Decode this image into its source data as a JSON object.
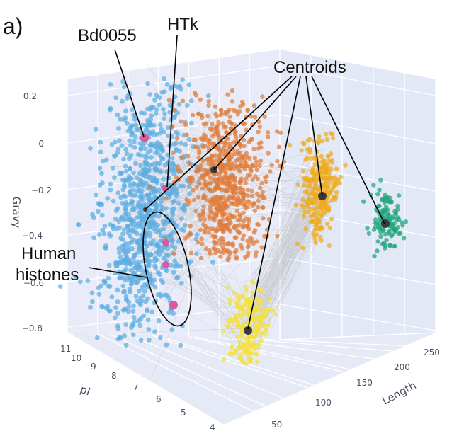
{
  "panel_label": "a)",
  "chart_data": {
    "type": "scatter",
    "projection": "3d",
    "title": "",
    "axes": {
      "x": {
        "label": "Length",
        "ticks": [
          50,
          100,
          150,
          200,
          250
        ],
        "range": [
          30,
          260
        ]
      },
      "y": {
        "label": "pI",
        "ticks": [
          4,
          5,
          6,
          7,
          8,
          9,
          10,
          11
        ],
        "range": [
          3.8,
          11.2
        ]
      },
      "z": {
        "label": "Gravy",
        "ticks": [
          "0.2",
          "0",
          "−0.2",
          "−0.4",
          "−0.6",
          "−0.8"
        ],
        "range": [
          -0.88,
          0.28
        ]
      }
    },
    "series": [
      {
        "name": "cluster-blue",
        "color": "#5dade2",
        "length_range": [
          30,
          260
        ],
        "pi_range": [
          4.5,
          11.0
        ],
        "gravy_range": [
          -0.9,
          0.25
        ],
        "approx_points": 1600
      },
      {
        "name": "cluster-orange",
        "color": "#e07b39",
        "length_range": [
          30,
          260
        ],
        "pi_range": [
          7.5,
          9.5
        ],
        "gravy_range": [
          -0.45,
          0.1
        ],
        "approx_points": 700
      },
      {
        "name": "cluster-gold",
        "color": "#efab1d",
        "length_range": [
          30,
          260
        ],
        "pi_range": [
          6.0,
          8.0
        ],
        "gravy_range": [
          -0.5,
          0.0
        ],
        "approx_points": 260
      },
      {
        "name": "cluster-teal",
        "color": "#1fa37a",
        "length_range": [
          30,
          260
        ],
        "pi_range": [
          4.5,
          6.0
        ],
        "gravy_range": [
          -0.5,
          -0.15
        ],
        "approx_points": 120
      },
      {
        "name": "cluster-yellow",
        "color": "#f4e23a",
        "length_range": [
          30,
          260
        ],
        "pi_range": [
          5.5,
          7.5
        ],
        "gravy_range": [
          -0.9,
          -0.45
        ],
        "approx_points": 200
      }
    ],
    "annotations": {
      "bd0055": "Bd0055",
      "htk": "HTk",
      "centroids": "Centroids",
      "human_histones_line1": "Human",
      "human_histones_line2": "histones"
    },
    "highlight_color": "#d95aa0",
    "centroid_color": "#3a3a3a"
  }
}
